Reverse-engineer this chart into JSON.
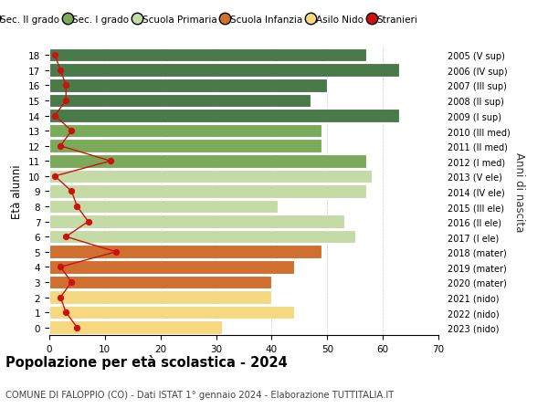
{
  "ages": [
    18,
    17,
    16,
    15,
    14,
    13,
    12,
    11,
    10,
    9,
    8,
    7,
    6,
    5,
    4,
    3,
    2,
    1,
    0
  ],
  "right_labels": [
    "2005 (V sup)",
    "2006 (IV sup)",
    "2007 (III sup)",
    "2008 (II sup)",
    "2009 (I sup)",
    "2010 (III med)",
    "2011 (II med)",
    "2012 (I med)",
    "2013 (V ele)",
    "2014 (IV ele)",
    "2015 (III ele)",
    "2016 (II ele)",
    "2017 (I ele)",
    "2018 (mater)",
    "2019 (mater)",
    "2020 (mater)",
    "2021 (nido)",
    "2022 (nido)",
    "2023 (nido)"
  ],
  "bar_values": [
    57,
    63,
    50,
    47,
    63,
    49,
    49,
    57,
    58,
    57,
    41,
    53,
    55,
    49,
    44,
    40,
    40,
    44,
    31
  ],
  "stranieri": [
    1,
    2,
    3,
    3,
    1,
    4,
    2,
    11,
    1,
    4,
    5,
    7,
    3,
    12,
    2,
    4,
    2,
    3,
    5
  ],
  "bar_colors": [
    "#4a7a4a",
    "#4a7a4a",
    "#4a7a4a",
    "#4a7a4a",
    "#4a7a4a",
    "#7aaa5a",
    "#7aaa5a",
    "#7aaa5a",
    "#c5dba5",
    "#c5dba5",
    "#c5dba5",
    "#c5dba5",
    "#c5dba5",
    "#d07030",
    "#d07030",
    "#d07030",
    "#f5d880",
    "#f5d880",
    "#f5d880"
  ],
  "legend_labels": [
    "Sec. II grado",
    "Sec. I grado",
    "Scuola Primaria",
    "Scuola Infanzia",
    "Asilo Nido",
    "Stranieri"
  ],
  "legend_colors": [
    "#4a7a4a",
    "#7aaa5a",
    "#c5dba5",
    "#d07030",
    "#f5d880",
    "#cc1111"
  ],
  "ylabel": "Età alunni",
  "right_ylabel": "Anni di nascita",
  "title": "Popolazione per età scolastica - 2024",
  "subtitle": "COMUNE DI FALOPPIO (CO) - Dati ISTAT 1° gennaio 2024 - Elaborazione TUTTITALIA.IT",
  "xlim": [
    0,
    70
  ],
  "xticks": [
    0,
    10,
    20,
    30,
    40,
    50,
    60,
    70
  ],
  "bg_color": "#ffffff",
  "stranieri_color": "#cc1111"
}
